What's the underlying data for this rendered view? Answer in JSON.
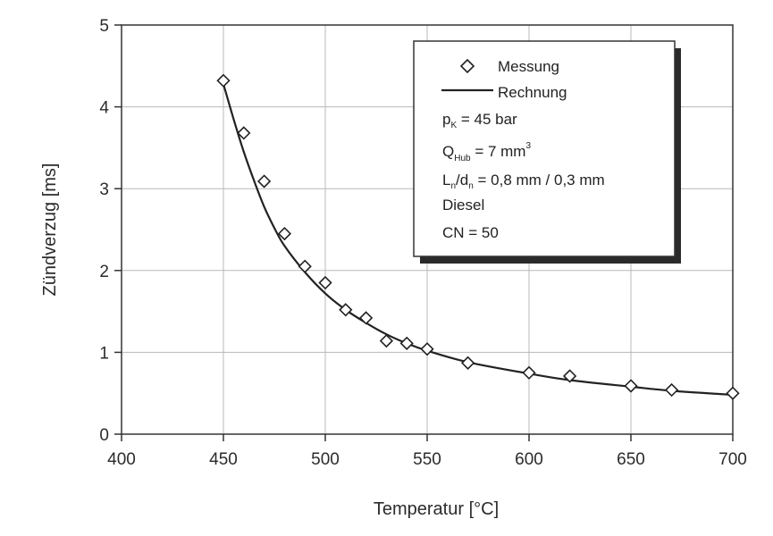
{
  "chart_data": {
    "type": "scatter",
    "xlabel": "Temperatur  [°C]",
    "ylabel": "Zündverzug  [ms]",
    "xlim": [
      400,
      700
    ],
    "ylim": [
      0,
      5
    ],
    "x_ticks": [
      "400",
      "450",
      "500",
      "550",
      "600",
      "650",
      "700"
    ],
    "y_ticks": [
      "0",
      "1",
      "2",
      "3",
      "4",
      "5"
    ],
    "grid": true,
    "legend_position": "top-right",
    "series": [
      {
        "name": "Messung",
        "marker": "diamond",
        "x": [
          450,
          460,
          470,
          480,
          490,
          500,
          510,
          520,
          530,
          540,
          550,
          570,
          600,
          620,
          650,
          670,
          700
        ],
        "y": [
          4.32,
          3.68,
          3.09,
          2.45,
          2.05,
          1.85,
          1.52,
          1.42,
          1.14,
          1.11,
          1.04,
          0.87,
          0.75,
          0.71,
          0.59,
          0.54,
          0.5
        ]
      },
      {
        "name": "Rechnung",
        "marker": "line",
        "x": [
          450,
          455,
          460,
          465,
          470,
          475,
          480,
          490,
          500,
          510,
          520,
          530,
          540,
          550,
          570,
          600,
          620,
          650,
          670,
          700
        ],
        "y": [
          4.28,
          3.85,
          3.45,
          3.1,
          2.78,
          2.52,
          2.3,
          1.98,
          1.72,
          1.52,
          1.36,
          1.22,
          1.11,
          1.02,
          0.88,
          0.74,
          0.66,
          0.58,
          0.53,
          0.48
        ]
      }
    ]
  },
  "legend": {
    "measured": "Messung",
    "computed": "Rechnung",
    "pk": {
      "sym": "p",
      "sub": "K",
      "rest": " = 45 bar"
    },
    "q": {
      "sym": "Q",
      "sub": "Hub",
      "rest": " = 7 mm",
      "sup": "3"
    },
    "ld": {
      "l": "L",
      "l_sub": "n",
      "slash": "/d",
      "d_sub": "n",
      "rest": " = 0,8 mm / 0,3 mm"
    },
    "fuel": "Diesel",
    "cn": "CN = 50"
  },
  "colors": {
    "ink": "#222222",
    "grid": "#b8b8b8",
    "frame": "#333333",
    "shadow": "#2a2a2a"
  }
}
